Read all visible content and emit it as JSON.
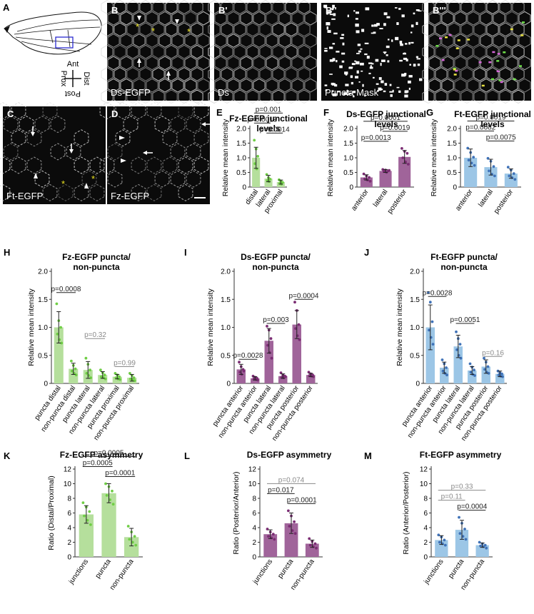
{
  "panel_letters": [
    "A",
    "B",
    "B'",
    "B''",
    "B'''",
    "C",
    "D",
    "E",
    "F",
    "G",
    "H",
    "I",
    "J",
    "K",
    "L",
    "M"
  ],
  "micrographs": [
    {
      "letter": "B",
      "label": "Ds-EGFP",
      "kind": "junction",
      "seed": 3,
      "marks": "B"
    },
    {
      "letter": "B'",
      "label": "Ds",
      "kind": "junction",
      "seed": 7,
      "marks": ""
    },
    {
      "letter": "B''",
      "label": "Puncta Mask",
      "kind": "mask",
      "seed": 11,
      "marks": ""
    },
    {
      "letter": "B'''",
      "label": "",
      "kind": "merge",
      "seed": 3,
      "marks": ""
    },
    {
      "letter": "C",
      "label": "Ft-EGFP",
      "kind": "sparse",
      "seed": 19,
      "marks": "C"
    },
    {
      "letter": "D",
      "label": "Fz-EGFP",
      "kind": "sparse",
      "seed": 23,
      "marks": "D"
    }
  ],
  "compass": {
    "top": "Ant",
    "bottom": "Post",
    "left": "Prox",
    "right": "Dist"
  },
  "colors": {
    "green": "#b5df9c",
    "green_dot": "#6fce45",
    "purple": "#a0649a",
    "purple_dot": "#7b2c73",
    "blue": "#9cc6e6",
    "blue_dot": "#3f72b8",
    "asterisk": "#e8e020"
  },
  "chart_data": [
    {
      "id": "E",
      "type": "bar",
      "title": [
        "Fz-EGFP junctional",
        "levels"
      ],
      "ylabel": "Relative mean intensity",
      "ylim": [
        0,
        2.0
      ],
      "yticks": [
        0,
        0.5,
        1.0,
        1.5,
        2.0
      ],
      "ytick_labels": [
        "0",
        "0.5",
        "1.0",
        "1.5",
        "2.0"
      ],
      "color": "green",
      "categories": [
        "distal",
        "lateral",
        "proximal"
      ],
      "values": [
        1.0,
        0.29,
        0.17
      ],
      "errors": [
        0.36,
        0.11,
        0.07
      ],
      "points": [
        [
          1.6,
          1.3,
          1.05,
          0.8,
          0.62
        ],
        [
          0.43,
          0.32,
          0.27,
          0.22,
          0.19
        ],
        [
          0.25,
          0.2,
          0.16,
          0.13,
          0.1
        ]
      ],
      "comparisons": [
        {
          "a": 0,
          "b": 2,
          "label": "p=0.001",
          "tier": 2
        },
        {
          "a": 0,
          "b": 1,
          "label": "p=0.0019",
          "tier": 1
        },
        {
          "a": 1,
          "b": 2,
          "label": "p=0.0014",
          "tier": 0
        }
      ]
    },
    {
      "id": "F",
      "type": "bar",
      "title": [
        "Ds-EGFP junctional",
        "levels"
      ],
      "ylabel": "Relative mean intensity",
      "ylim": [
        0,
        2.0
      ],
      "yticks": [
        0,
        0.5,
        1.0,
        1.5,
        2.0
      ],
      "ytick_labels": [
        "0",
        "0.5",
        "1.0",
        "1.5",
        "2.0"
      ],
      "color": "purple",
      "categories": [
        "anterior",
        "lateral",
        "posterior"
      ],
      "values": [
        0.33,
        0.55,
        1.03
      ],
      "errors": [
        0.09,
        0.05,
        0.22
      ],
      "points": [
        [
          0.45,
          0.38,
          0.33,
          0.28,
          0.24,
          0.2
        ],
        [
          0.6,
          0.58,
          0.55,
          0.53,
          0.5,
          0.57
        ],
        [
          1.32,
          1.22,
          1.15,
          1.0,
          0.86,
          0.78
        ]
      ],
      "comparisons": [
        {
          "a": 0,
          "b": 2,
          "label": "p=0.0001",
          "tier": 2
        },
        {
          "a": 1,
          "b": 2,
          "label": "p=0.0019",
          "tier": 1
        },
        {
          "a": 0,
          "b": 1,
          "label": "p=0.0013",
          "tier": 0
        }
      ]
    },
    {
      "id": "G",
      "type": "bar",
      "title": [
        "Ft-EGFP junctional",
        "levels"
      ],
      "ylabel": "Relative mean intensity",
      "ylim": [
        0,
        2.0
      ],
      "yticks": [
        0,
        0.5,
        1.0,
        1.5,
        2.0
      ],
      "ytick_labels": [
        "0",
        "0.5",
        "1.0",
        "1.5",
        "2.0"
      ],
      "color": "blue",
      "categories": [
        "anterior",
        "lateral",
        "posterior"
      ],
      "values": [
        1.0,
        0.68,
        0.46
      ],
      "errors": [
        0.3,
        0.27,
        0.16
      ],
      "points": [
        [
          1.33,
          1.18,
          1.02,
          0.92,
          0.82,
          0.74
        ],
        [
          0.98,
          0.88,
          0.7,
          0.55,
          0.44,
          0.38
        ],
        [
          0.68,
          0.58,
          0.46,
          0.38,
          0.32,
          0.26
        ]
      ],
      "comparisons": [
        {
          "a": 0,
          "b": 2,
          "label": "p=0.0019",
          "tier": 2
        },
        {
          "a": 0,
          "b": 1,
          "label": "p=0.0082",
          "tier": 1
        },
        {
          "a": 1,
          "b": 2,
          "label": "p=0.0075",
          "tier": 0
        }
      ]
    },
    {
      "id": "H",
      "type": "bar",
      "title": [
        "Fz-EGFP puncta/",
        "non-puncta"
      ],
      "ylabel": "Relative mean intensity",
      "ylim": [
        0,
        2.0
      ],
      "yticks": [
        0,
        0.5,
        1.0,
        1.5,
        2.0
      ],
      "ytick_labels": [
        "0",
        "0.5",
        "1.0",
        "1.5",
        "2.0"
      ],
      "color": "green",
      "categories": [
        "puncta distal",
        "non-puncta distal",
        "puncta lateral",
        "non-puncta lateral",
        "puncta proximal",
        "non-puncta proximal"
      ],
      "values": [
        1.0,
        0.26,
        0.24,
        0.15,
        0.12,
        0.1
      ],
      "errors": [
        0.28,
        0.1,
        0.15,
        0.06,
        0.04,
        0.06
      ],
      "points": [
        [
          1.42,
          1.12,
          1.0,
          0.88,
          0.78,
          0.72
        ],
        [
          0.4,
          0.32,
          0.26,
          0.22,
          0.18,
          0.15
        ],
        [
          0.45,
          0.34,
          0.24,
          0.18,
          0.14,
          0.1
        ],
        [
          0.24,
          0.19,
          0.15,
          0.12,
          0.1,
          0.08
        ],
        [
          0.18,
          0.15,
          0.12,
          0.1,
          0.08,
          0.07
        ],
        [
          0.18,
          0.14,
          0.1,
          0.08,
          0.06,
          0.05
        ]
      ],
      "comparisons": [
        {
          "a": 0,
          "b": 1,
          "label": "p=0.0008",
          "tier": 0,
          "at": 1.62,
          "gray": false
        },
        {
          "a": 2,
          "b": 3,
          "label": "p=0.32",
          "tier": 0,
          "at": 0.8,
          "gray": true
        },
        {
          "a": 4,
          "b": 5,
          "label": "p=0.99",
          "tier": 0,
          "at": 0.3,
          "gray": true
        }
      ]
    },
    {
      "id": "I",
      "type": "bar",
      "title": [
        "Ds-EGFP puncta/",
        "non-puncta"
      ],
      "ylabel": "Relative mean intensity",
      "ylim": [
        0,
        2.0
      ],
      "yticks": [
        0,
        0.5,
        1.0,
        1.5,
        2.0
      ],
      "ytick_labels": [
        "0",
        "0.5",
        "1.0",
        "1.5",
        "2.0"
      ],
      "color": "purple",
      "categories": [
        "puncta anterior",
        "non-puncta anterior",
        "puncta lateral",
        "non-puncta lateral",
        "puncta posterior",
        "non-puncta posterior"
      ],
      "values": [
        0.25,
        0.09,
        0.76,
        0.13,
        1.05,
        0.15
      ],
      "errors": [
        0.09,
        0.03,
        0.22,
        0.04,
        0.25,
        0.03
      ],
      "points": [
        [
          0.38,
          0.3,
          0.25,
          0.2,
          0.16,
          0.22
        ],
        [
          0.13,
          0.11,
          0.09,
          0.08,
          0.07,
          0.06
        ],
        [
          1.02,
          0.95,
          0.8,
          0.68,
          0.55,
          0.45
        ],
        [
          0.19,
          0.15,
          0.13,
          0.11,
          0.1,
          0.12
        ],
        [
          1.45,
          1.3,
          1.05,
          0.98,
          0.85,
          0.78
        ],
        [
          0.2,
          0.17,
          0.15,
          0.14,
          0.13,
          0.12
        ]
      ],
      "comparisons": [
        {
          "a": 0,
          "b": 1,
          "label": "p=0.0028",
          "tier": 0,
          "at": 0.43,
          "gray": false
        },
        {
          "a": 2,
          "b": 3,
          "label": "p=0.003",
          "tier": 0,
          "at": 1.07,
          "gray": false
        },
        {
          "a": 4,
          "b": 5,
          "label": "p=0.0004",
          "tier": 0,
          "at": 1.5,
          "gray": false
        }
      ]
    },
    {
      "id": "J",
      "type": "bar",
      "title": [
        "Ft-EGFP puncta/",
        "non-puncta"
      ],
      "ylabel": "Relative mean intensity",
      "ylim": [
        0,
        2.0
      ],
      "yticks": [
        0,
        0.5,
        1.0,
        1.5,
        2.0
      ],
      "ytick_labels": [
        "0",
        "0.5",
        "1.0",
        "1.5",
        "2.0"
      ],
      "color": "blue",
      "categories": [
        "puncta anterior",
        "non-puncta anterior",
        "puncta lateral",
        "non-puncta lateral",
        "puncta posterior",
        "non-puncta posterior"
      ],
      "values": [
        1.0,
        0.28,
        0.66,
        0.23,
        0.3,
        0.17
      ],
      "errors": [
        0.4,
        0.1,
        0.2,
        0.07,
        0.12,
        0.05
      ],
      "points": [
        [
          1.62,
          1.45,
          1.1,
          0.95,
          0.82,
          0.7
        ],
        [
          0.42,
          0.35,
          0.28,
          0.22,
          0.18,
          0.15
        ],
        [
          0.92,
          0.8,
          0.7,
          0.6,
          0.5,
          0.45
        ],
        [
          0.35,
          0.29,
          0.24,
          0.2,
          0.16,
          0.14
        ],
        [
          0.45,
          0.38,
          0.3,
          0.25,
          0.2,
          0.18
        ],
        [
          0.22,
          0.19,
          0.17,
          0.15,
          0.13,
          0.12
        ]
      ],
      "comparisons": [
        {
          "a": 0,
          "b": 1,
          "label": "p=0.0028",
          "tier": 0,
          "at": 1.55,
          "gray": false
        },
        {
          "a": 2,
          "b": 3,
          "label": "p=0.0051",
          "tier": 0,
          "at": 1.07,
          "gray": false
        },
        {
          "a": 4,
          "b": 5,
          "label": "p=0.16",
          "tier": 0,
          "at": 0.48,
          "gray": true
        }
      ]
    },
    {
      "id": "K",
      "type": "bar",
      "title": [
        "Fz-EGFP asymmetry"
      ],
      "ylabel": "Ratio (Distal/Proximal)",
      "ylim": [
        0,
        12
      ],
      "yticks": [
        0,
        2,
        4,
        6,
        8,
        10,
        12
      ],
      "ytick_labels": [
        "0",
        "2",
        "4",
        "6",
        "8",
        "10",
        "12"
      ],
      "color": "green",
      "categories": [
        "junctions",
        "puncta",
        "non-puncta"
      ],
      "values": [
        5.8,
        8.7,
        2.7
      ],
      "errors": [
        1.2,
        1.3,
        1.2
      ],
      "points": [
        [
          7.4,
          6.8,
          6.2,
          5.6,
          5.0,
          4.4
        ],
        [
          10.0,
          9.6,
          9.0,
          8.4,
          7.8,
          7.2
        ],
        [
          4.2,
          3.4,
          2.8,
          2.4,
          2.0,
          1.6
        ]
      ],
      "comparisons": [
        {
          "a": 0,
          "b": 1,
          "label": "p=0.0005",
          "tier": 1
        },
        {
          "a": 0,
          "b": 2,
          "label": "p=0.0005",
          "tier": 2
        },
        {
          "a": 1,
          "b": 2,
          "label": "p=0.0001",
          "tier": 0
        }
      ]
    },
    {
      "id": "L",
      "type": "bar",
      "title": [
        "Ds-EGFP asymmetry"
      ],
      "ylabel": "Ratio (Posterior/Anterior)",
      "ylim": [
        0,
        12
      ],
      "yticks": [
        0,
        2,
        4,
        6,
        8,
        10,
        12
      ],
      "ytick_labels": [
        "0",
        "2",
        "4",
        "6",
        "8",
        "10",
        "12"
      ],
      "color": "purple",
      "categories": [
        "junctions",
        "puncta",
        "non-puncta"
      ],
      "values": [
        3.1,
        4.6,
        1.8
      ],
      "errors": [
        0.6,
        1.4,
        0.5
      ],
      "points": [
        [
          3.8,
          3.4,
          3.1,
          2.8,
          2.6,
          2.4
        ],
        [
          6.3,
          5.6,
          4.8,
          4.2,
          3.6,
          3.2
        ],
        [
          2.5,
          2.1,
          1.8,
          1.6,
          1.4,
          1.2
        ]
      ],
      "comparisons": [
        {
          "a": 0,
          "b": 2,
          "label": "p=0.074",
          "tier": 2,
          "gray": true
        },
        {
          "a": 0,
          "b": 1,
          "label": "p=0.017",
          "tier": 1,
          "gray": false
        },
        {
          "a": 1,
          "b": 2,
          "label": "p=0.0001",
          "tier": 0,
          "gray": false
        }
      ]
    },
    {
      "id": "M",
      "type": "bar",
      "title": [
        "Ft-EGFP asymmetry"
      ],
      "ylabel": "Ratio (Anterior/Posterior)",
      "ylim": [
        0,
        12
      ],
      "yticks": [
        0,
        2,
        4,
        6,
        8,
        10,
        12
      ],
      "ytick_labels": [
        "0",
        "2",
        "4",
        "6",
        "8",
        "10",
        "12"
      ],
      "color": "blue",
      "categories": [
        "junctions",
        "puncta",
        "non-puncta"
      ],
      "values": [
        2.3,
        3.7,
        1.6
      ],
      "errors": [
        0.6,
        1.3,
        0.3
      ],
      "points": [
        [
          3.0,
          2.7,
          2.3,
          2.0,
          1.8,
          1.6
        ],
        [
          5.4,
          4.6,
          3.8,
          3.2,
          2.8,
          2.4
        ],
        [
          2.0,
          1.8,
          1.6,
          1.5,
          1.4,
          1.2
        ]
      ],
      "comparisons": [
        {
          "a": 0,
          "b": 2,
          "label": "p=0.33",
          "tier": 2,
          "gray": true
        },
        {
          "a": 0,
          "b": 1,
          "label": "p=0.11",
          "tier": 1,
          "gray": true
        },
        {
          "a": 1,
          "b": 2,
          "label": "p=0.0004",
          "tier": 0,
          "gray": false
        }
      ]
    }
  ]
}
